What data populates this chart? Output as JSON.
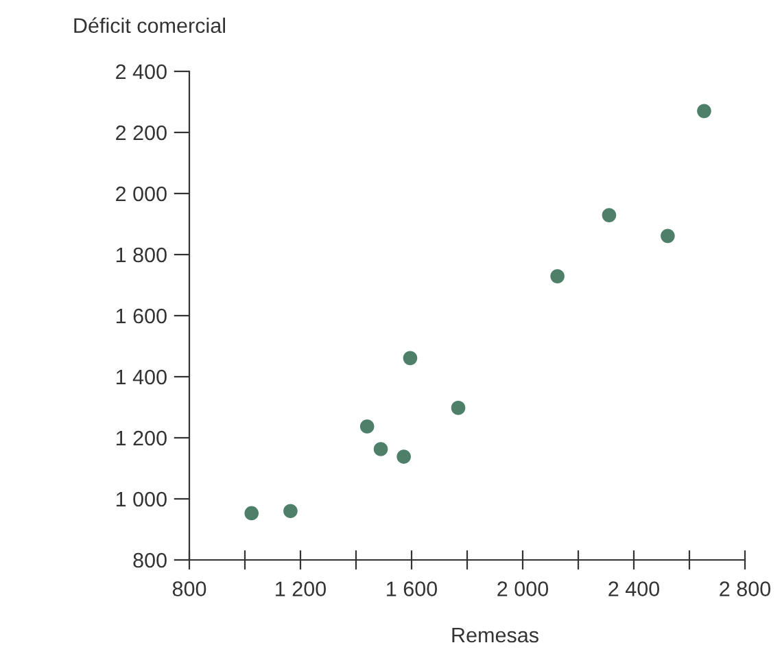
{
  "chart_data": {
    "type": "scatter",
    "xlabel": "Remesas",
    "ylabel": "Déficit comercial",
    "x": [
      1024,
      1164,
      1440,
      1489,
      1572,
      1595,
      1768,
      2125,
      2311,
      2522,
      2653
    ],
    "values": [
      953,
      960,
      1237,
      1163,
      1138,
      1461,
      1298,
      1729,
      1929,
      1861,
      2270
    ],
    "color": "#4e7f68",
    "marker": "circle",
    "grid": false,
    "legend": false,
    "xlim": [
      800,
      2800
    ],
    "ylim": [
      800,
      2400
    ],
    "xticks": [
      {
        "value": 800,
        "label": "800"
      },
      {
        "value": 1000,
        "label": null
      },
      {
        "value": 1200,
        "label": "1 200"
      },
      {
        "value": 1400,
        "label": null
      },
      {
        "value": 1600,
        "label": "1 600"
      },
      {
        "value": 1800,
        "label": null
      },
      {
        "value": 2000,
        "label": "2 000"
      },
      {
        "value": 2200,
        "label": null
      },
      {
        "value": 2400,
        "label": "2 400"
      },
      {
        "value": 2600,
        "label": null
      },
      {
        "value": 2800,
        "label": "2 800"
      }
    ],
    "yticks": [
      {
        "value": 800,
        "label": "800"
      },
      {
        "value": 1000,
        "label": "1 000"
      },
      {
        "value": 1200,
        "label": "1 200"
      },
      {
        "value": 1400,
        "label": "1 400"
      },
      {
        "value": 1600,
        "label": "1 600"
      },
      {
        "value": 1800,
        "label": "1 800"
      },
      {
        "value": 2000,
        "label": "2 000"
      },
      {
        "value": 2200,
        "label": "2 200"
      },
      {
        "value": 2400,
        "label": "2 400"
      }
    ]
  }
}
